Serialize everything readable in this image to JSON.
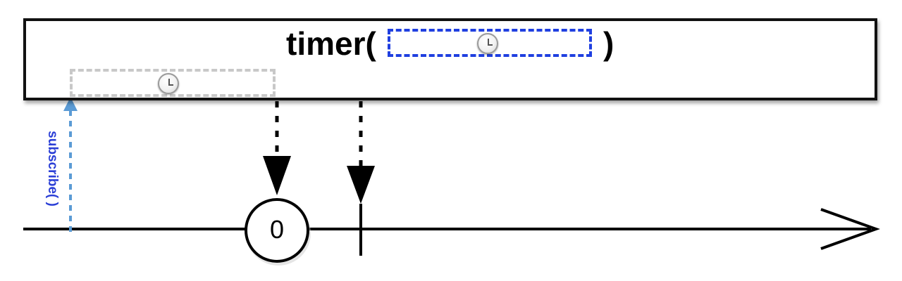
{
  "operator": {
    "name": "timer(",
    "close": ")"
  },
  "icons": {
    "param_icon": "clock-icon",
    "delay_icon": "clock-icon"
  },
  "subscribe": {
    "label": "subscribe( )"
  },
  "timeline": {
    "emission_value": "0",
    "completion": "vertical-tick",
    "direction": "left-to-right"
  },
  "colors": {
    "param_border": "#1f3fe0",
    "delay_border": "#c8c8c8",
    "subscribe_arrow": "#5b9bd5",
    "subscribe_text": "#2b3fd6",
    "line": "#000000"
  }
}
